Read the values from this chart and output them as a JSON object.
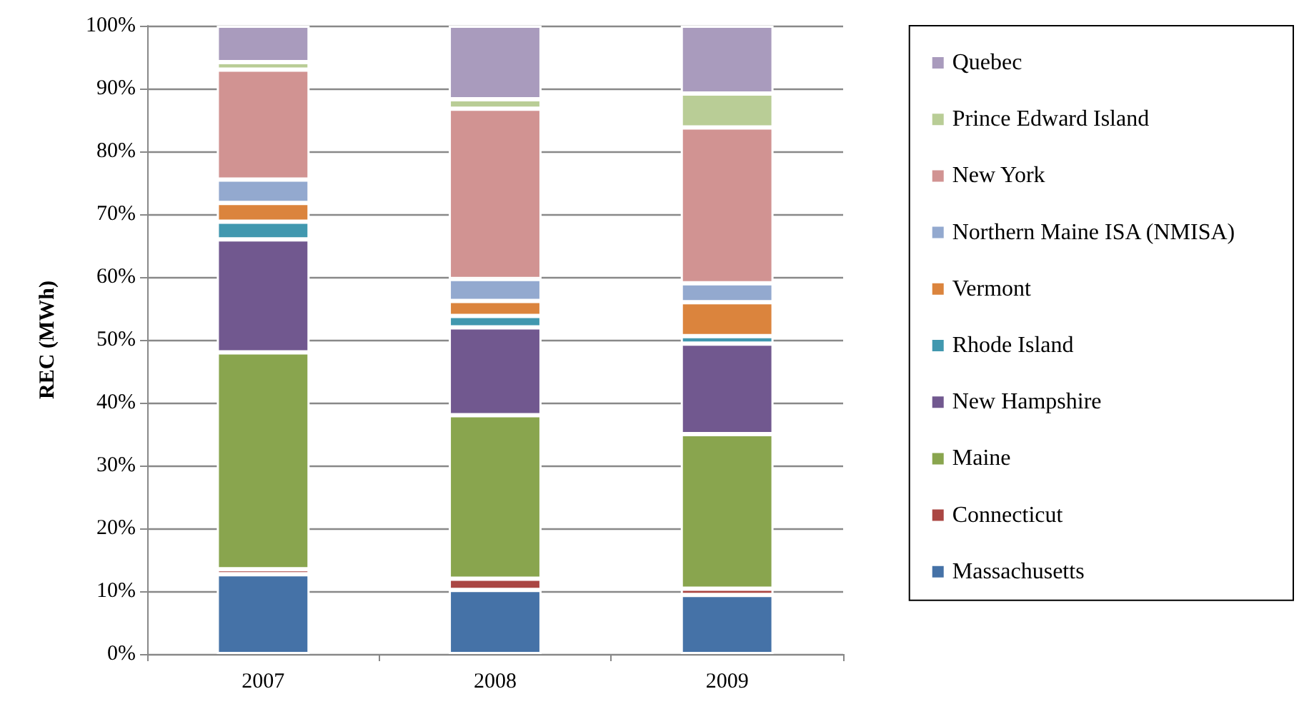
{
  "chart_data": {
    "type": "bar",
    "stacked": true,
    "ylabel": "REC (MWh)",
    "categories": [
      "2007",
      "2008",
      "2009"
    ],
    "series": [
      {
        "name": "Massachusetts",
        "color": "#4572a7",
        "values": [
          12.7,
          10.2,
          9.4
        ]
      },
      {
        "name": "Connecticut",
        "color": "#aa4643",
        "values": [
          0.8,
          1.8,
          1.0
        ]
      },
      {
        "name": "Maine",
        "color": "#89a54e",
        "values": [
          34.5,
          26,
          24.6
        ]
      },
      {
        "name": "New Hampshire",
        "color": "#71588f",
        "values": [
          18,
          14,
          14.4
        ]
      },
      {
        "name": "Rhode Island",
        "color": "#4198af",
        "values": [
          2.8,
          1.8,
          1.2
        ]
      },
      {
        "name": "Vermont",
        "color": "#db843d",
        "values": [
          3,
          2.4,
          5.4
        ]
      },
      {
        "name": "Northern Maine ISA (NMISA)",
        "color": "#93a9cf",
        "values": [
          3.7,
          3.5,
          3
        ]
      },
      {
        "name": "New York",
        "color": "#d19392",
        "values": [
          17.5,
          27.1,
          24.8
        ]
      },
      {
        "name": "Prince Edward Island",
        "color": "#b9cd96",
        "values": [
          1.2,
          1.5,
          5.4
        ]
      },
      {
        "name": "Quebec",
        "color": "#a99bbd",
        "values": [
          5.8,
          11.7,
          10.8
        ]
      }
    ],
    "ylim": [
      0,
      100
    ],
    "yticks": [
      {
        "value": 0,
        "label": "0%"
      },
      {
        "value": 10,
        "label": "10%"
      },
      {
        "value": 20,
        "label": "20%"
      },
      {
        "value": 30,
        "label": "30%"
      },
      {
        "value": 40,
        "label": "40%"
      },
      {
        "value": 50,
        "label": "50%"
      },
      {
        "value": 60,
        "label": "60%"
      },
      {
        "value": 70,
        "label": "70%"
      },
      {
        "value": 80,
        "label": "80%"
      },
      {
        "value": 90,
        "label": "90%"
      },
      {
        "value": 100,
        "label": "100%"
      }
    ],
    "grid": "y",
    "legend": "right"
  }
}
